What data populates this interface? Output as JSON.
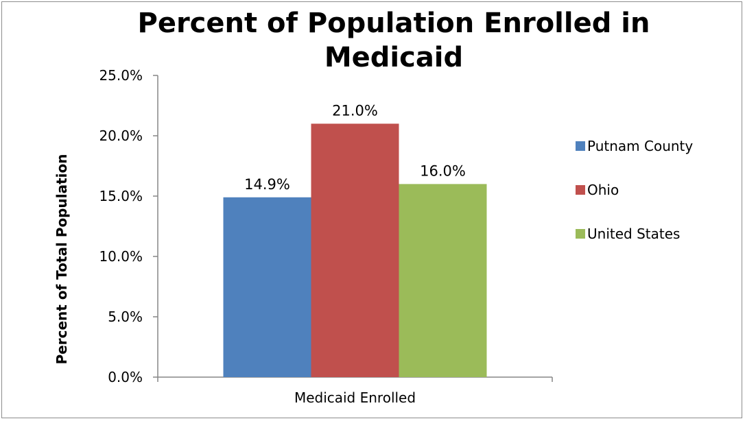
{
  "chart_data": {
    "type": "bar",
    "title": "Percent of Population Enrolled in Medicaid",
    "title_lines": [
      "Percent of Population Enrolled in",
      "Medicaid"
    ],
    "xlabel": "",
    "ylabel": "Percent of Total Population",
    "categories": [
      "Medicaid Enrolled"
    ],
    "series": [
      {
        "name": "Putnam County",
        "values": [
          14.9
        ],
        "label": "14.9%",
        "color": "#4f81bd"
      },
      {
        "name": "Ohio",
        "values": [
          21.0
        ],
        "label": "21.0%",
        "color": "#c0504d"
      },
      {
        "name": "United States",
        "values": [
          16.0
        ],
        "label": "16.0%",
        "color": "#9bbb59"
      }
    ],
    "ylim": [
      0,
      25
    ],
    "yticks": [
      0,
      5,
      10,
      15,
      20,
      25
    ],
    "ytick_labels": [
      "0.0%",
      "5.0%",
      "10.0%",
      "15.0%",
      "20.0%",
      "25.0%"
    ],
    "grid": false,
    "legend_position": "right"
  }
}
